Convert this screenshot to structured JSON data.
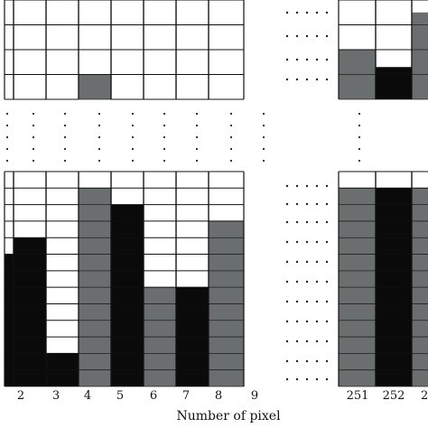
{
  "figure": {
    "xlabel": "Number of pixel",
    "pixel_labels": [
      "2",
      "3",
      "4",
      "5",
      "6",
      "7",
      "8",
      "9"
    ],
    "right_pixel_labels": [
      "251",
      "252",
      "2"
    ],
    "colors": {
      "black": "#0a0a0a",
      "gray": "#6b6e6f",
      "white": "#ffffff",
      "grid": "#111111"
    },
    "top_grid": {
      "columns": [
        {
          "dark": 0,
          "dark_color": "black"
        },
        {
          "dark": 0,
          "dark_color": "black"
        },
        {
          "dark": 0,
          "dark_color": "black"
        },
        {
          "dark": 1,
          "dark_color": "gray"
        },
        {
          "dark": 0,
          "dark_color": "black"
        },
        {
          "dark": 0,
          "dark_color": "black"
        },
        {
          "dark": 0,
          "dark_color": "black"
        },
        {
          "dark": 0,
          "dark_color": "black"
        }
      ]
    },
    "top_right_grid": {
      "columns": [
        {
          "dark": 2,
          "dark_color": "gray"
        },
        {
          "dark": 1.3,
          "dark_color": "black"
        },
        {
          "dark": 3.5,
          "dark_color": "gray"
        }
      ]
    },
    "bottom_grid": {
      "columns": [
        {
          "dark": 8,
          "dark_color": "black"
        },
        {
          "dark": 9,
          "dark_color": "black"
        },
        {
          "dark": 2,
          "dark_color": "black"
        },
        {
          "dark": 12,
          "dark_color": "gray"
        },
        {
          "dark": 11,
          "dark_color": "black"
        },
        {
          "dark": 6,
          "dark_color": "gray"
        },
        {
          "dark": 6,
          "dark_color": "black"
        },
        {
          "dark": 10,
          "dark_color": "gray"
        }
      ]
    },
    "bottom_right_grid": {
      "columns": [
        {
          "dark": 12,
          "dark_color": "gray"
        },
        {
          "dark": 12,
          "dark_color": "black"
        },
        {
          "dark": 12,
          "dark_color": "gray"
        }
      ]
    }
  }
}
